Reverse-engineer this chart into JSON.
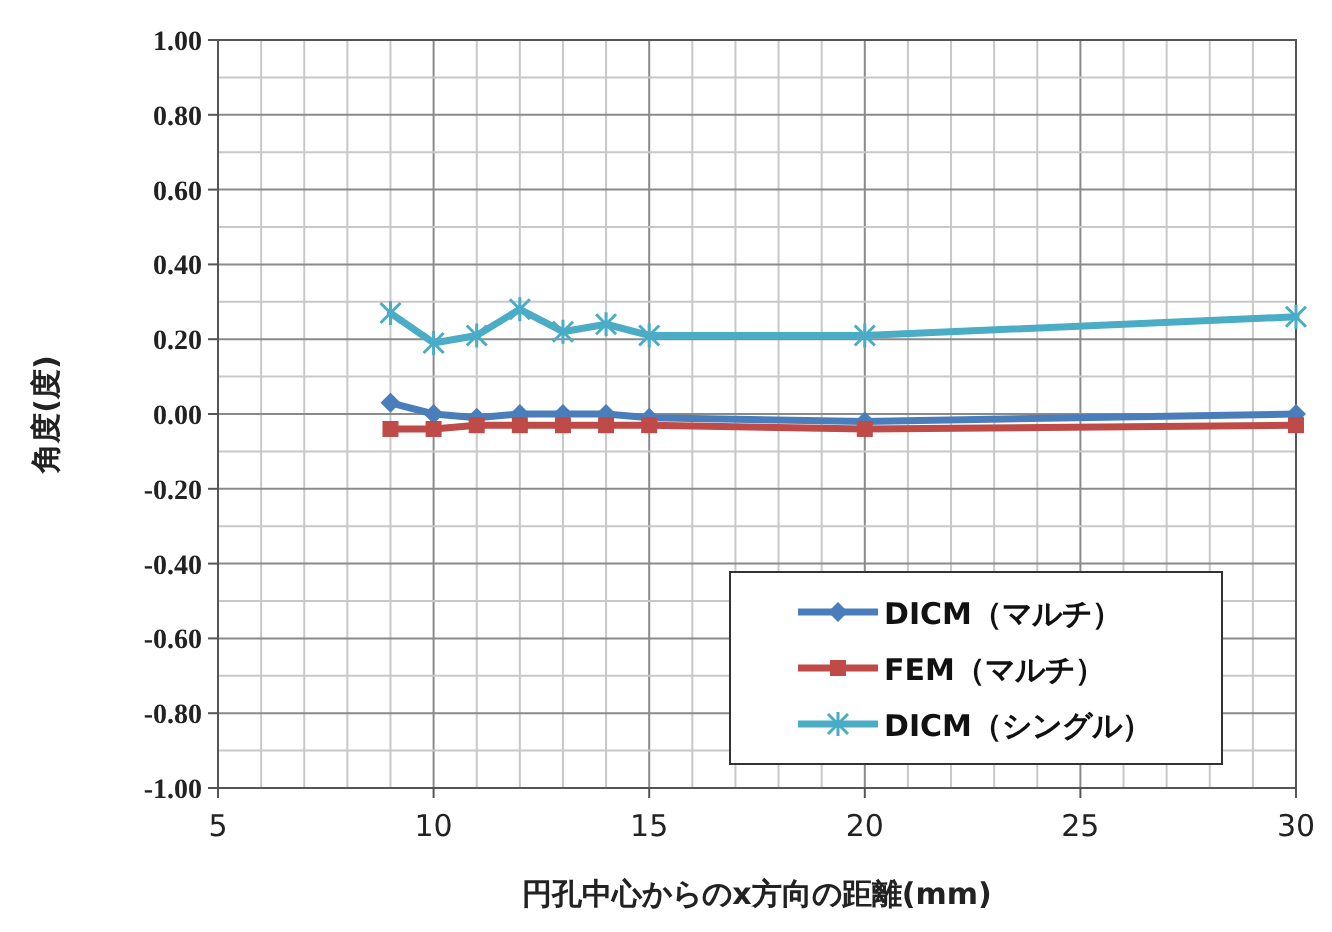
{
  "chart_data": {
    "type": "line",
    "xlabel": "円孔中心からのx方向の距離(mm)",
    "ylabel": "角度(度)",
    "x": [
      9,
      10,
      11,
      12,
      13,
      14,
      15,
      20,
      30
    ],
    "series": [
      {
        "name": "DICM（マルチ）",
        "color": "#4a7ebb",
        "marker": "diamond",
        "values": [
          0.03,
          0.0,
          -0.01,
          0.0,
          0.0,
          0.0,
          -0.01,
          -0.02,
          0.0
        ]
      },
      {
        "name": "FEM（マルチ）",
        "color": "#be4b48",
        "marker": "square",
        "values": [
          -0.04,
          -0.04,
          -0.03,
          -0.03,
          -0.03,
          -0.03,
          -0.03,
          -0.04,
          -0.03
        ]
      },
      {
        "name": "DICM（シングル）",
        "color": "#4bacc6",
        "marker": "cross",
        "values": [
          0.27,
          0.19,
          0.21,
          0.28,
          0.22,
          0.24,
          0.21,
          0.21,
          0.26
        ]
      }
    ],
    "xlim": [
      5,
      30
    ],
    "xticks": [
      5,
      10,
      15,
      20,
      25,
      30
    ],
    "ylim": [
      -1,
      1
    ],
    "yticks": [
      {
        "value": 1,
        "label": "1.00"
      },
      {
        "value": 0.8,
        "label": "0.80"
      },
      {
        "value": 0.6,
        "label": "0.60"
      },
      {
        "value": 0.4,
        "label": "0.40"
      },
      {
        "value": 0.2,
        "label": "0.20"
      },
      {
        "value": 0,
        "label": "0.00"
      },
      {
        "value": -0.2,
        "label": "-0.20"
      },
      {
        "value": -0.4,
        "label": "-0.40"
      },
      {
        "value": -0.6,
        "label": "-0.60"
      },
      {
        "value": -0.8,
        "label": "-0.80"
      },
      {
        "value": -1,
        "label": "-1.00"
      }
    ],
    "grid": true,
    "legend": "bottom right",
    "line_style": "solid"
  }
}
